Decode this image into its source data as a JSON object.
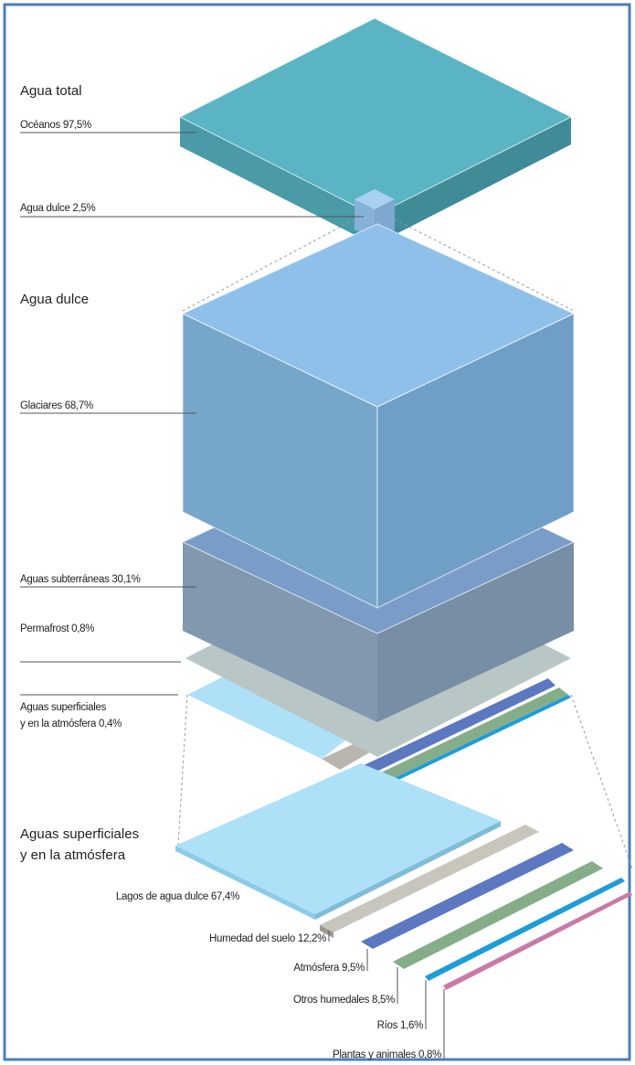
{
  "sections": [
    {
      "title": [
        "Agua total"
      ],
      "items": [
        [
          "Océanos 97,5%"
        ],
        [
          "Agua dulce 2,5%"
        ]
      ]
    },
    {
      "title": [
        "Agua dulce"
      ],
      "items": [
        [
          "Glaciares 68,7%"
        ],
        [
          "Aguas subterráneas 30,1%"
        ],
        [
          "Permafrost 0,8%"
        ],
        [
          "Aguas superficiales",
          "y en la atmósfera 0,4%"
        ]
      ]
    },
    {
      "title": [
        "Aguas superficiales",
        "y en la atmósfera"
      ],
      "items": [
        [
          "Lagos de agua dulce 67,4%"
        ],
        [
          "Humedad del suelo 12,2%"
        ],
        [
          "Atmósfera 9,5%"
        ],
        [
          "Otros humedales 8,5%"
        ],
        [
          "Ríos 1,6%"
        ],
        [
          "Plantas y animales 0,8%"
        ]
      ]
    }
  ]
}
